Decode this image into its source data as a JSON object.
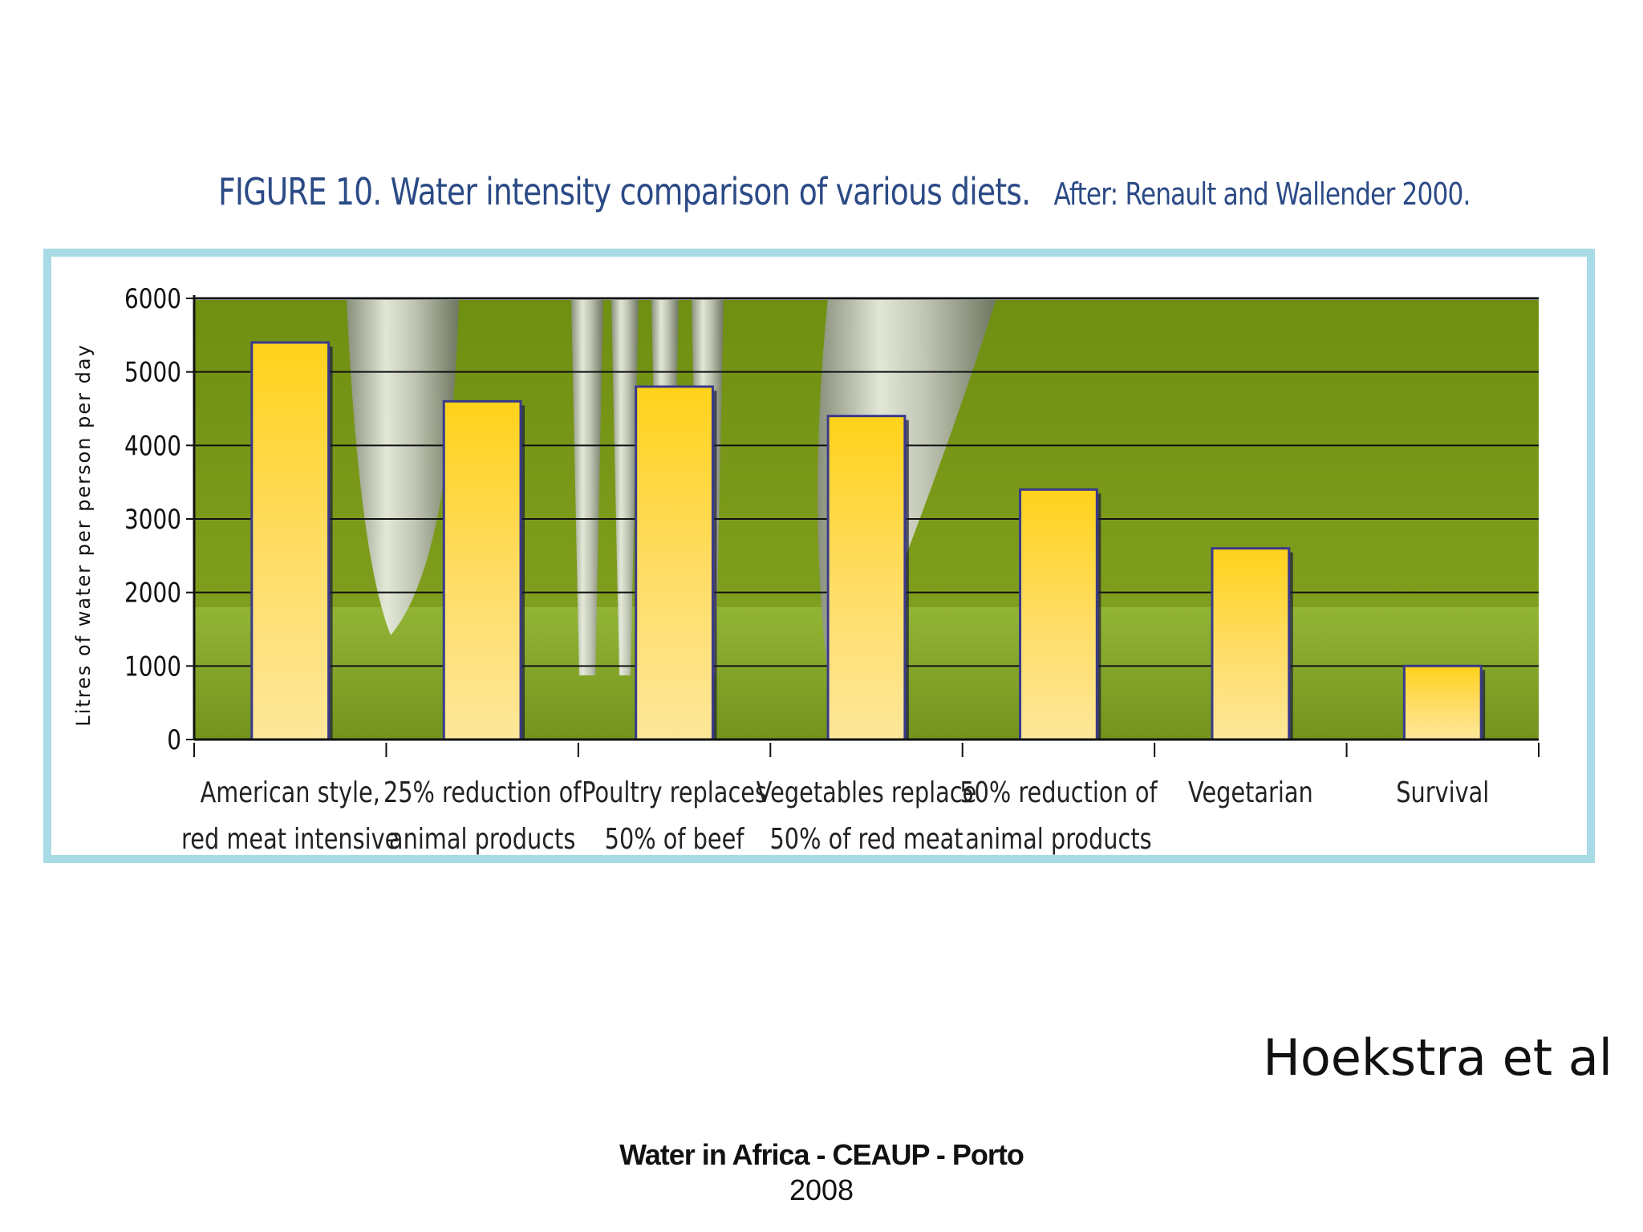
{
  "figure": {
    "number": "FIGURE 10.",
    "caption": "Water intensity comparison of various diets.",
    "source": "After: Renault and Wallender 2000."
  },
  "credit": "Hoekstra et al",
  "footer": {
    "line1": "Water in Africa - CEAUP - Porto",
    "line2": "2008"
  },
  "colors": {
    "frame": "#a8dbe6",
    "bar": "#ffd21a",
    "bar_edge": "#3a3a8c",
    "background": "#7a9a1f",
    "title": "#2b4a86"
  },
  "chart_data": {
    "type": "bar",
    "title": "Water intensity comparison of various diets.",
    "ylabel": "Litres of water per person per day",
    "xlabel": "",
    "ylim": [
      0,
      6000
    ],
    "yticks": [
      0,
      1000,
      2000,
      3000,
      4000,
      5000,
      6000
    ],
    "grid": true,
    "categories": [
      [
        "American style,",
        "red meat intensive"
      ],
      [
        "25% reduction of",
        "animal products"
      ],
      [
        "Poultry replaces",
        "50% of beef"
      ],
      [
        "Vegetables replace",
        "50% of red meat"
      ],
      [
        "50% reduction of",
        "animal products"
      ],
      [
        "Vegetarian"
      ],
      [
        "Survival"
      ]
    ],
    "values": [
      5400,
      4600,
      4800,
      4400,
      3400,
      2600,
      1000
    ]
  }
}
